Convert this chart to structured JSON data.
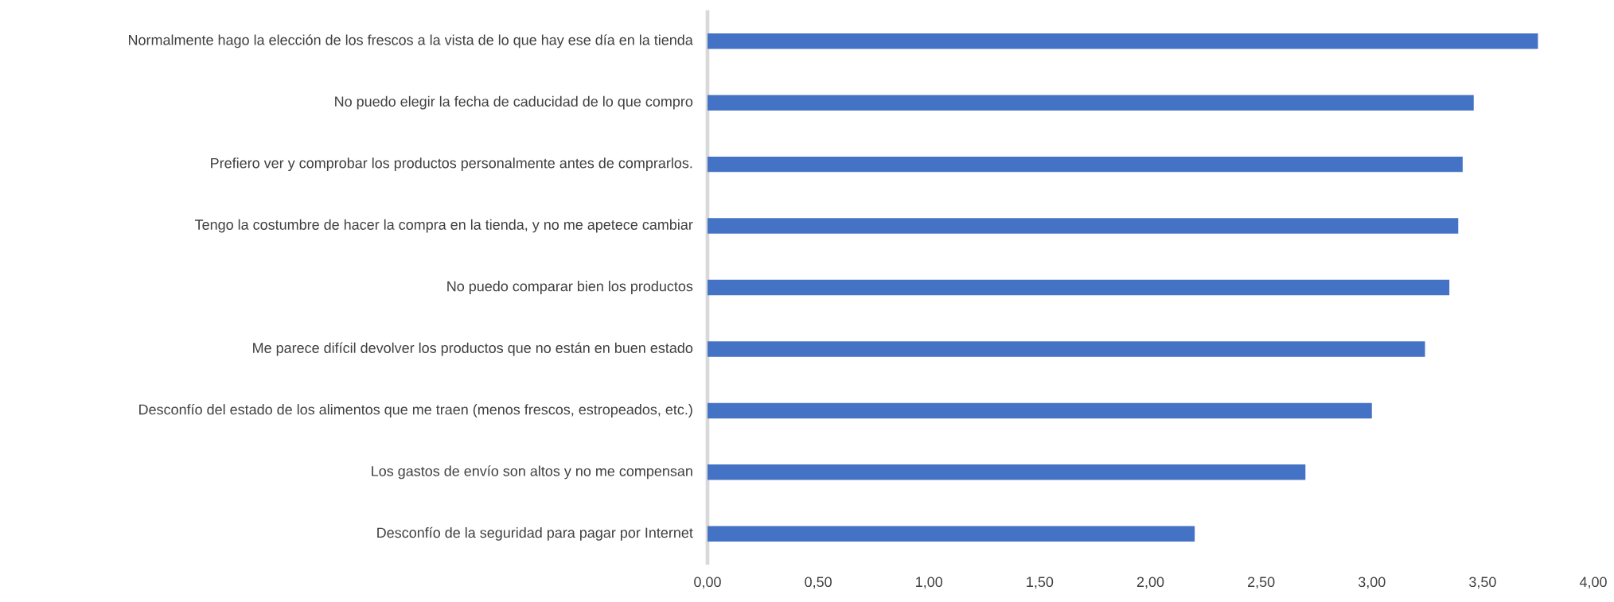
{
  "chart_data": {
    "type": "bar",
    "orientation": "horizontal",
    "categories": [
      "Normalmente hago la elección de los frescos a la vista de lo que hay ese día en la tienda",
      "No puedo elegir la fecha de caducidad de lo que compro",
      "Prefiero ver y comprobar los productos personalmente antes de comprarlos.",
      "Tengo la costumbre de hacer la compra en la tienda, y no me apetece cambiar",
      "No puedo comparar bien los productos",
      "Me parece difícil devolver los productos que no están en buen estado",
      "Desconfío del estado de los alimentos que me traen (menos frescos, estropeados, etc.)",
      "Los gastos de envío son altos y no me compensan",
      "Desconfío de la seguridad para pagar por Internet"
    ],
    "values": [
      3.75,
      3.46,
      3.41,
      3.39,
      3.35,
      3.24,
      3.0,
      2.7,
      2.2
    ],
    "color": "#4472c4",
    "xlim": [
      0,
      4
    ],
    "xticks": [
      {
        "value": 0,
        "label": "0,00"
      },
      {
        "value": 0.5,
        "label": "0,50"
      },
      {
        "value": 1,
        "label": "1,00"
      },
      {
        "value": 1.5,
        "label": "1,50"
      },
      {
        "value": 2,
        "label": "2,00"
      },
      {
        "value": 2.5,
        "label": "2,50"
      },
      {
        "value": 3,
        "label": "3,00"
      },
      {
        "value": 3.5,
        "label": "3,50"
      },
      {
        "value": 4,
        "label": "4,00"
      }
    ]
  }
}
